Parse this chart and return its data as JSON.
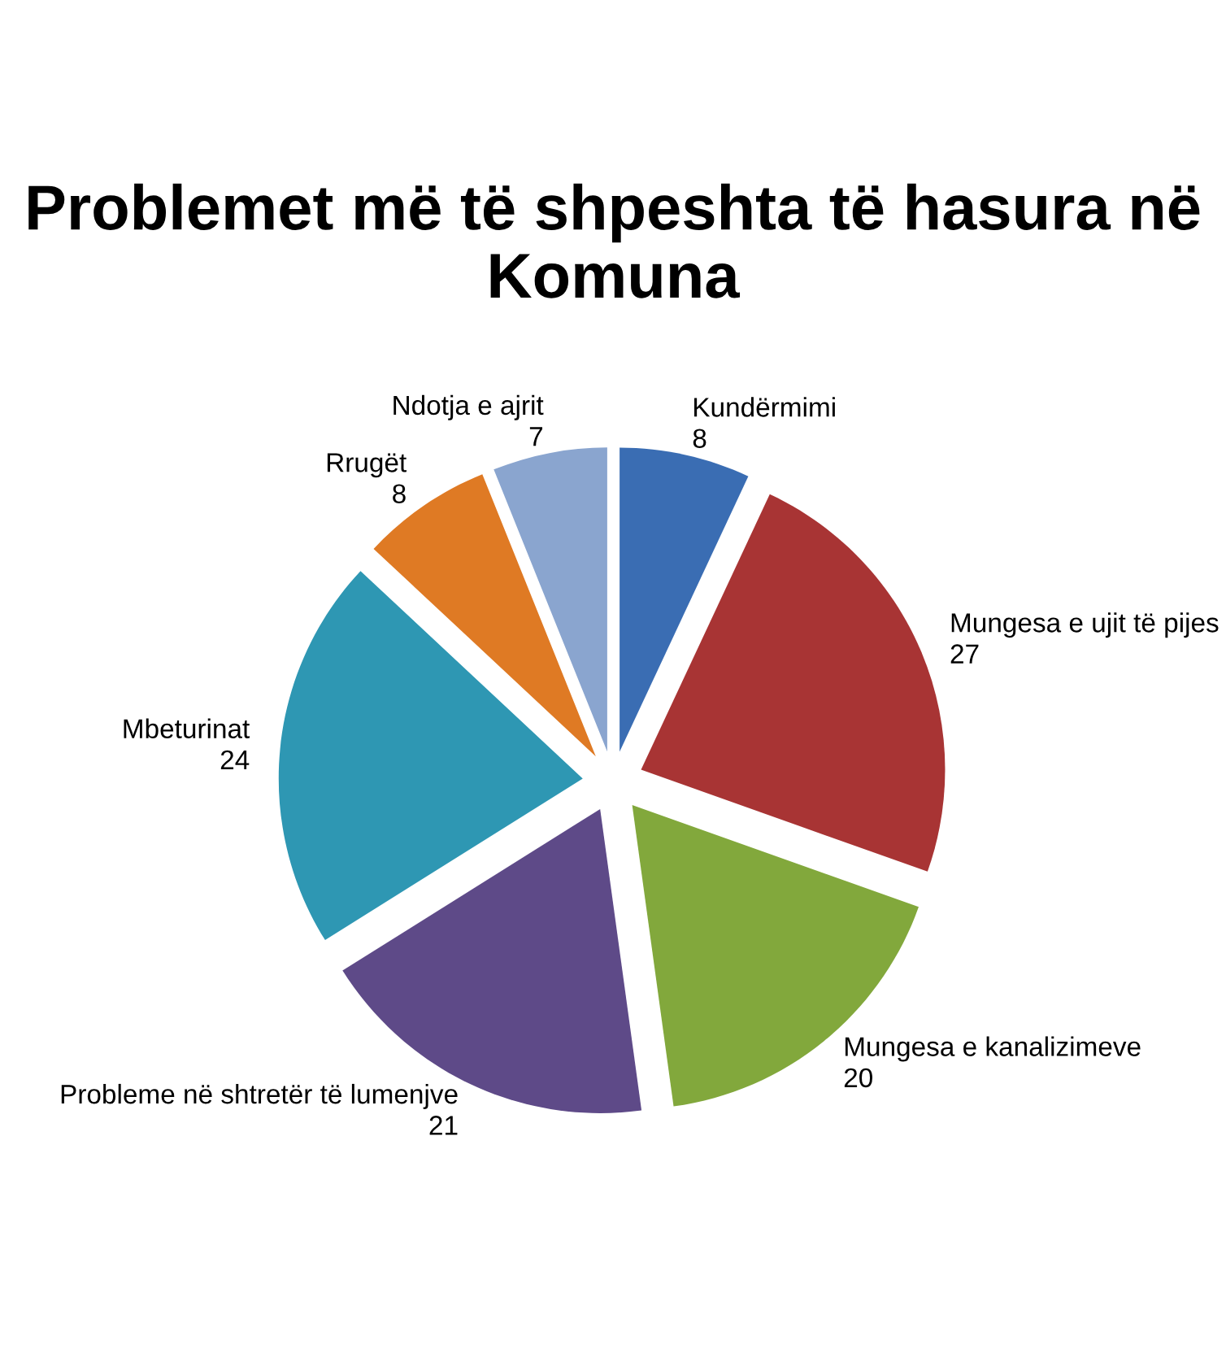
{
  "chart_data": {
    "type": "pie",
    "title": "Problemet më të shpeshta të hasura në Komuna",
    "categories": [
      "Kundërmimi",
      "Mungesa e ujit të pijes",
      "Mungesa e kanalizimeve",
      "Probleme në shtretër të lumenjve",
      "Mbeturinat",
      "Rrugët",
      "Ndotja e ajrit"
    ],
    "values": [
      8,
      27,
      20,
      21,
      24,
      8,
      7
    ],
    "colors": [
      "#3a6db3",
      "#a83434",
      "#82a83c",
      "#5e4a88",
      "#2e97b3",
      "#df7a24",
      "#8aa5cf"
    ],
    "data_labels": true,
    "legend": false
  }
}
